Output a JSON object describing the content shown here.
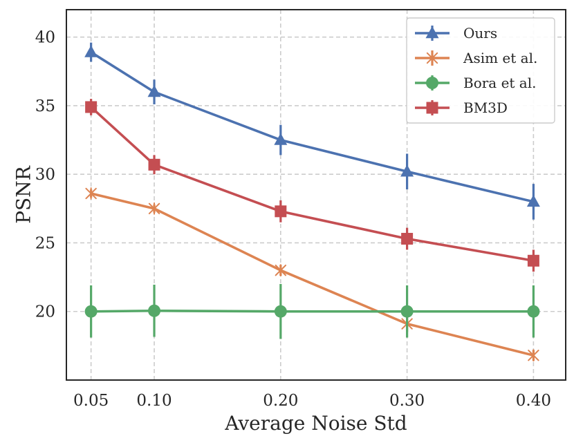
{
  "chart_data": {
    "type": "line",
    "title": "",
    "xlabel": "Average Noise Std",
    "ylabel": "PSNR",
    "x": [
      0.05,
      0.1,
      0.2,
      0.3,
      0.4
    ],
    "x_tick_labels": [
      "0.05",
      "0.10",
      "0.20",
      "0.30",
      "0.40"
    ],
    "xlim": [
      0.0305,
      0.4255
    ],
    "ylim": [
      15.0,
      42.0
    ],
    "y_ticks": [
      20,
      25,
      30,
      35,
      40
    ],
    "y_tick_labels": [
      "20",
      "25",
      "30",
      "35",
      "40"
    ],
    "grid": true,
    "legend_position": "top-right",
    "series": [
      {
        "name": "Ours",
        "color": "#4c72b0",
        "marker": "triangle",
        "values": [
          38.9,
          36.0,
          32.5,
          30.2,
          28.0
        ],
        "errors": [
          0.7,
          0.9,
          1.1,
          1.3,
          1.3
        ]
      },
      {
        "name": "Asim et al.",
        "color": "#dd8452",
        "marker": "asterisk",
        "values": [
          28.6,
          27.5,
          23.0,
          19.1,
          16.8
        ],
        "errors": [
          0.3,
          0.3,
          0.4,
          0.6,
          0.4
        ]
      },
      {
        "name": "Bora et al.",
        "color": "#55a868",
        "marker": "circle",
        "values": [
          20.0,
          20.05,
          20.0,
          20.0,
          20.0
        ],
        "errors": [
          1.9,
          1.9,
          2.0,
          1.9,
          1.9
        ]
      },
      {
        "name": "BM3D",
        "color": "#c44e52",
        "marker": "square",
        "values": [
          34.9,
          30.7,
          27.3,
          25.3,
          23.7
        ],
        "errors": [
          0.6,
          0.7,
          0.8,
          0.8,
          0.8
        ]
      }
    ]
  }
}
